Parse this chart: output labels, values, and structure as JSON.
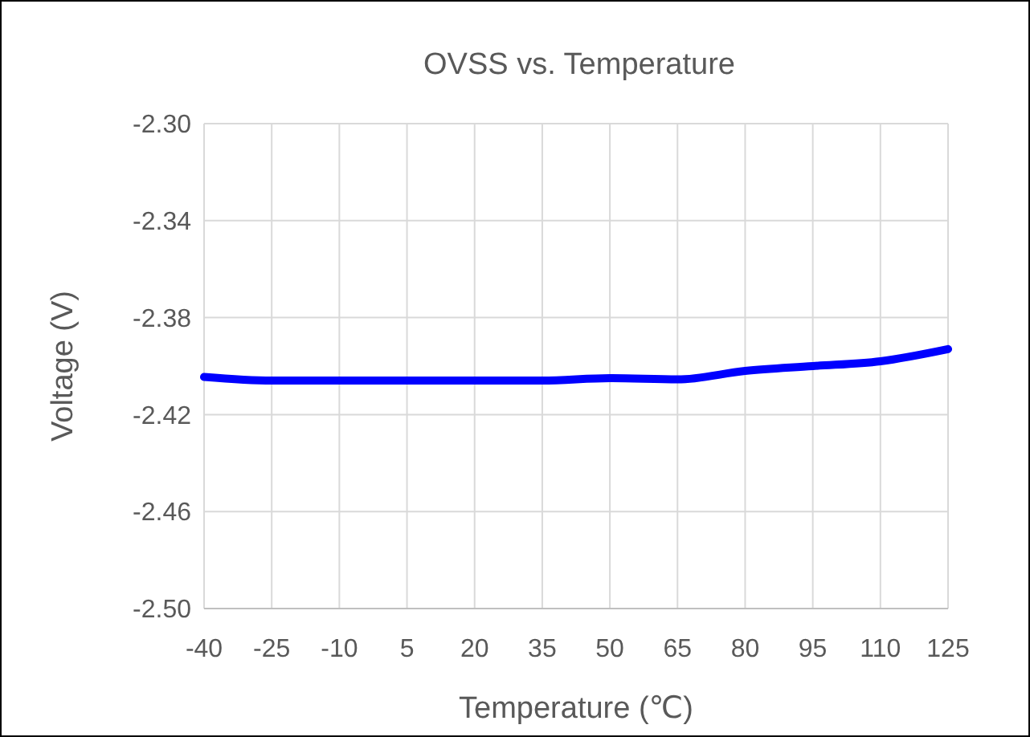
{
  "chart_data": {
    "type": "line",
    "title": "OVSS vs. Temperature",
    "xlabel": "Temperature (℃)",
    "ylabel": "Voltage (V)",
    "x": [
      -40,
      -25,
      -10,
      5,
      20,
      35,
      50,
      65,
      80,
      95,
      110,
      125
    ],
    "series": [
      {
        "color": "#0000ff",
        "values": [
          -2.4045,
          -2.406,
          -2.406,
          -2.406,
          -2.406,
          -2.406,
          -2.405,
          -2.4055,
          -2.402,
          -2.4,
          -2.398,
          -2.393
        ]
      }
    ],
    "xlim": [
      -40,
      125
    ],
    "xticks": [
      -40,
      -25,
      -10,
      5,
      20,
      35,
      50,
      65,
      80,
      95,
      110,
      125
    ],
    "ylim": [
      -2.5,
      -2.3
    ],
    "yticks": [
      {
        "value": -2.5,
        "label": "-2.50"
      },
      {
        "value": -2.46,
        "label": "-2.46"
      },
      {
        "value": -2.42,
        "label": "-2.42"
      },
      {
        "value": -2.38,
        "label": "-2.38"
      },
      {
        "value": -2.34,
        "label": "-2.34"
      },
      {
        "value": -2.3,
        "label": "-2.30"
      }
    ],
    "grid": true,
    "line_style": "solid",
    "marker": "none"
  }
}
